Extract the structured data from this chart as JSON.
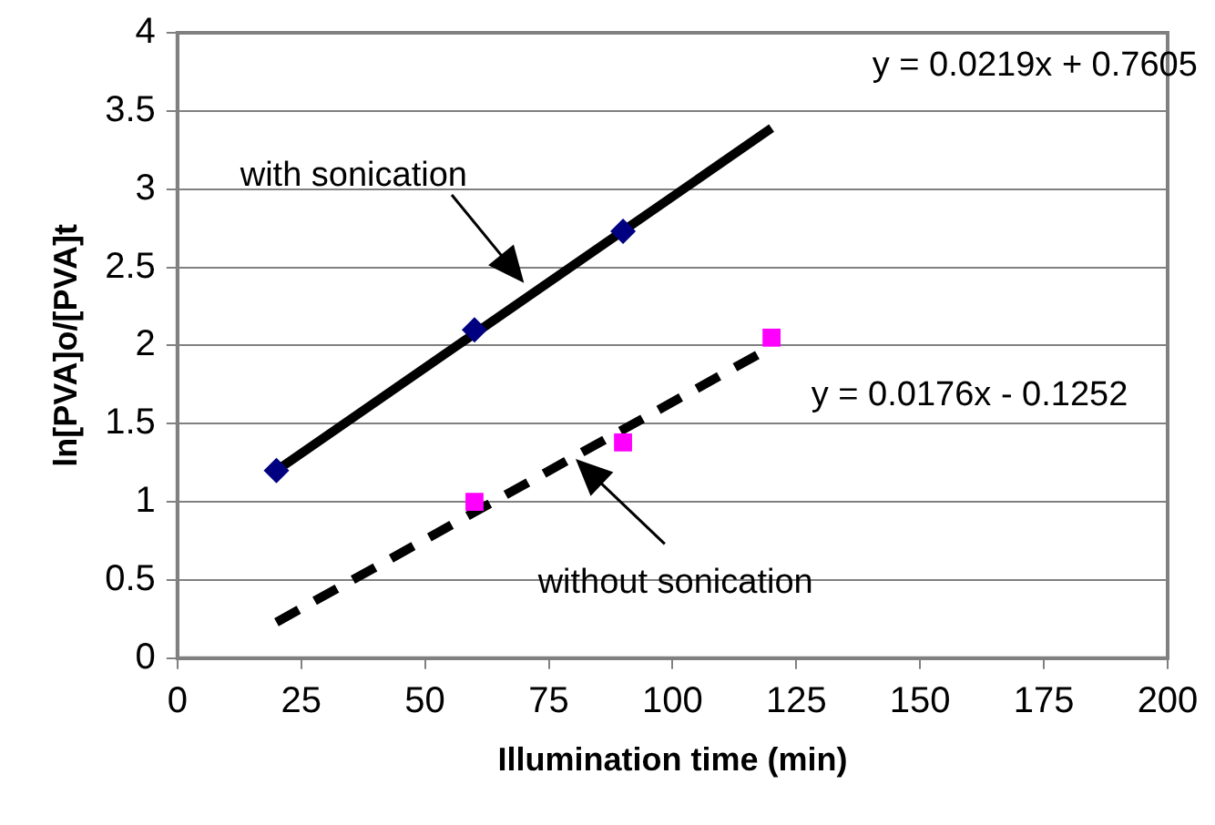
{
  "chart_data": {
    "type": "scatter",
    "xlabel": "Illumination time (min)",
    "ylabel": "ln[PVA]o/[PVA]t",
    "xlim": [
      0,
      200
    ],
    "xticks": [
      0,
      25,
      50,
      75,
      100,
      125,
      150,
      175,
      200
    ],
    "ylim": [
      0,
      4
    ],
    "yticks": [
      0,
      0.5,
      1,
      1.5,
      2,
      2.5,
      3,
      3.5,
      4
    ],
    "grid": "y",
    "legend": false,
    "series": [
      {
        "type": "scatter",
        "x": [
          20,
          60,
          90
        ],
        "values": [
          1.2,
          2.1,
          2.73
        ],
        "color": "#000080",
        "marker": "diamond"
      },
      {
        "type": "scatter",
        "x": [
          60,
          90,
          120
        ],
        "values": [
          1.0,
          1.38,
          2.05
        ],
        "color": "#ff00ff",
        "marker": "square"
      },
      {
        "type": "line",
        "x": [
          20,
          120
        ],
        "values": [
          1.2,
          3.39
        ],
        "color": "#000000",
        "marker": "none",
        "line_style": "solid"
      },
      {
        "type": "line",
        "x": [
          20,
          120
        ],
        "values": [
          0.23,
          1.99
        ],
        "color": "#000000",
        "marker": "none",
        "line_style": "dashed"
      }
    ],
    "annotations": [
      "y = 0.0219x + 0.7605",
      "with sonication",
      "y = 0.0176x - 0.1252",
      "without sonication"
    ]
  }
}
